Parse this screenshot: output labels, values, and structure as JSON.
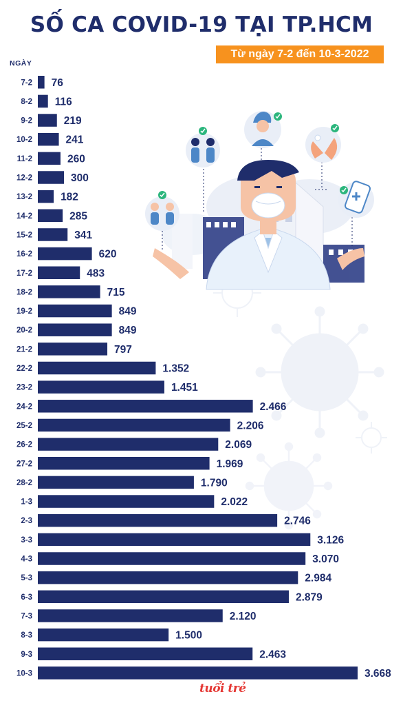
{
  "title": "SỐ CA COVID-19 TẠI TP.HCM",
  "subtitle": "Từ ngày 7-2 đến 10-3-2022",
  "category_axis_label": "NGÀY",
  "logo_text": "tuổi trẻ",
  "colors": {
    "bar": "#1f2d6b",
    "label": "#1f2d6b",
    "title": "#1f2d6b",
    "subtitle_bg": "#f7921e",
    "logo": "#e53935"
  },
  "chart_data": {
    "type": "bar",
    "orientation": "horizontal",
    "grid": false,
    "categories": [
      "7-2",
      "8-2",
      "9-2",
      "10-2",
      "11-2",
      "12-2",
      "13-2",
      "14-2",
      "15-2",
      "16-2",
      "17-2",
      "18-2",
      "19-2",
      "20-2",
      "21-2",
      "22-2",
      "23-2",
      "24-2",
      "25-2",
      "26-2",
      "27-2",
      "28-2",
      "1-3",
      "2-3",
      "3-3",
      "4-3",
      "5-3",
      "6-3",
      "7-3",
      "8-3",
      "9-3",
      "10-3"
    ],
    "values": [
      76,
      116,
      219,
      241,
      260,
      300,
      182,
      285,
      341,
      620,
      483,
      715,
      849,
      849,
      797,
      1352,
      1451,
      2466,
      2206,
      2069,
      1969,
      1790,
      2022,
      2746,
      3126,
      3070,
      2984,
      2879,
      2120,
      1500,
      2463,
      3668
    ],
    "value_labels": [
      "76",
      "116",
      "219",
      "241",
      "260",
      "300",
      "182",
      "285",
      "341",
      "620",
      "483",
      "715",
      "849",
      "849",
      "797",
      "1.352",
      "1.451",
      "2.466",
      "2.206",
      "2.069",
      "1.969",
      "1.790",
      "2.022",
      "2.746",
      "3.126",
      "3.070",
      "2.984",
      "2.879",
      "2.120",
      "1.500",
      "2.463",
      "3.668"
    ]
  }
}
